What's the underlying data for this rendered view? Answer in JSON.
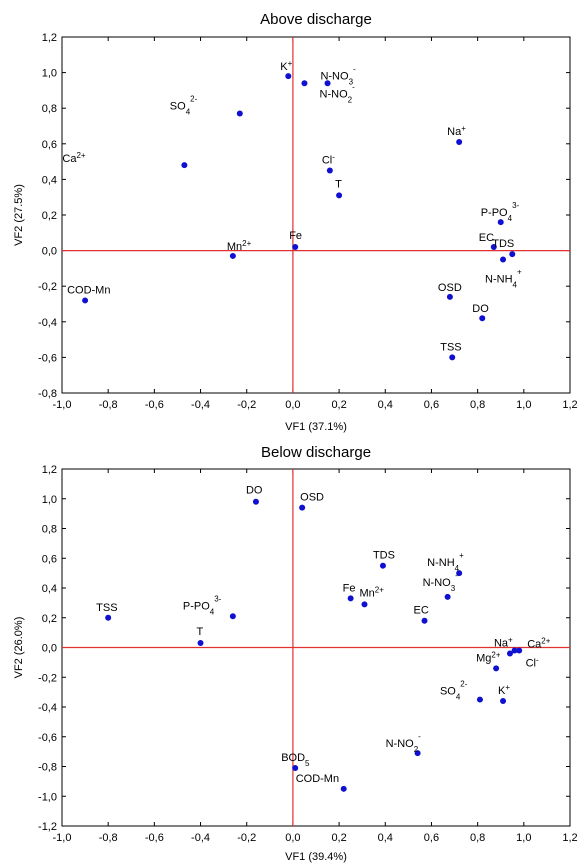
{
  "chart_data": [
    {
      "type": "scatter",
      "title": "Above discharge",
      "xlabel": "VF1 (37.1%)",
      "ylabel": "VF2 (27.5%)",
      "xlim": [
        -1.0,
        1.2
      ],
      "ylim": [
        -0.8,
        1.2
      ],
      "grid": false,
      "xticks": [
        "-1,0",
        "-0,8",
        "-0,6",
        "-0,4",
        "-0,2",
        "0,0",
        "0,2",
        "0,4",
        "0,6",
        "0,8",
        "1,0",
        "1,2"
      ],
      "yticks": [
        "-0,8",
        "-0,6",
        "-0,4",
        "-0,2",
        "0,0",
        "0,2",
        "0,4",
        "0,6",
        "0,8",
        "1,0",
        "1,2"
      ],
      "points": [
        {
          "label": "K",
          "sup": "+",
          "sub": "",
          "x": -0.02,
          "y": 0.98
        },
        {
          "label": "N-NO",
          "sub": "3",
          "sup": "-",
          "x": 0.05,
          "y": 0.94
        },
        {
          "label": "N-NO",
          "sub": "2",
          "sup": "-",
          "x": 0.15,
          "y": 0.94
        },
        {
          "label": "SO",
          "sub": "4",
          "sup": "2-",
          "x": -0.23,
          "y": 0.77
        },
        {
          "label": "Na",
          "sup": "+",
          "sub": "",
          "x": 0.72,
          "y": 0.61
        },
        {
          "label": "Ca",
          "sup": "2+",
          "sub": "",
          "x": -0.47,
          "y": 0.48
        },
        {
          "label": "Cl",
          "sup": "-",
          "sub": "",
          "x": 0.16,
          "y": 0.45
        },
        {
          "label": "T",
          "sup": "",
          "sub": "",
          "x": 0.2,
          "y": 0.31
        },
        {
          "label": "P-PO",
          "sub": "4",
          "sup": "3-",
          "x": 0.9,
          "y": 0.16
        },
        {
          "label": "EC",
          "sup": "",
          "sub": "",
          "x": 0.87,
          "y": 0.02
        },
        {
          "label": "TDS",
          "sup": "",
          "sub": "",
          "x": 0.95,
          "y": -0.02
        },
        {
          "label": "N-NH",
          "sub": "4",
          "sup": "+",
          "x": 0.91,
          "y": -0.05
        },
        {
          "label": "Fe",
          "sup": "",
          "sub": "",
          "x": 0.01,
          "y": 0.02
        },
        {
          "label": "Mn",
          "sup": "2+",
          "sub": "",
          "x": -0.26,
          "y": -0.03
        },
        {
          "label": "COD-Mn",
          "sup": "",
          "sub": "",
          "x": -0.9,
          "y": -0.28
        },
        {
          "label": "OSD",
          "sup": "",
          "sub": "",
          "x": 0.68,
          "y": -0.26
        },
        {
          "label": "DO",
          "sup": "",
          "sub": "",
          "x": 0.82,
          "y": -0.38
        },
        {
          "label": "TSS",
          "sup": "",
          "sub": "",
          "x": 0.69,
          "y": -0.6
        }
      ]
    },
    {
      "type": "scatter",
      "title": "Below discharge",
      "xlabel": "VF1 (39.4%)",
      "ylabel": "VF2 (26.0%)",
      "xlim": [
        -1.0,
        1.2
      ],
      "ylim": [
        -1.2,
        1.2
      ],
      "grid": false,
      "xticks": [
        "-1,0",
        "-0,8",
        "-0,6",
        "-0,4",
        "-0,2",
        "0,0",
        "0,2",
        "0,4",
        "0,6",
        "0,8",
        "1,0",
        "1,2"
      ],
      "yticks": [
        "-1,2",
        "-1,0",
        "-0,8",
        "-0,6",
        "-0,4",
        "-0,2",
        "0,0",
        "0,2",
        "0,4",
        "0,6",
        "0,8",
        "1,0",
        "1,2"
      ],
      "points": [
        {
          "label": "DO",
          "sup": "",
          "sub": "",
          "x": -0.16,
          "y": 0.98
        },
        {
          "label": "OSD",
          "sup": "",
          "sub": "",
          "x": 0.04,
          "y": 0.94
        },
        {
          "label": "TDS",
          "sup": "",
          "sub": "",
          "x": 0.39,
          "y": 0.55
        },
        {
          "label": "N-NH",
          "sub": "4",
          "sup": "+",
          "x": 0.72,
          "y": 0.5
        },
        {
          "label": "N-NO",
          "sub": "3",
          "sup": "-",
          "x": 0.67,
          "y": 0.34
        },
        {
          "label": "Fe",
          "sup": "",
          "sub": "",
          "x": 0.25,
          "y": 0.33
        },
        {
          "label": "Mn",
          "sup": "2+",
          "sub": "",
          "x": 0.31,
          "y": 0.29
        },
        {
          "label": "EC",
          "sup": "",
          "sub": "",
          "x": 0.57,
          "y": 0.18
        },
        {
          "label": "TSS",
          "sup": "",
          "sub": "",
          "x": -0.8,
          "y": 0.2
        },
        {
          "label": "P-PO",
          "sub": "4",
          "sup": "3-",
          "x": -0.26,
          "y": 0.21
        },
        {
          "label": "T",
          "sup": "",
          "sub": "",
          "x": -0.4,
          "y": 0.03
        },
        {
          "label": "Ca",
          "sup": "2+",
          "sub": "",
          "x": 0.98,
          "y": -0.02
        },
        {
          "label": "Na",
          "sup": "+",
          "sub": "",
          "x": 0.94,
          "y": -0.04
        },
        {
          "label": "Cl",
          "sup": "-",
          "sub": "",
          "x": 0.96,
          "y": -0.02
        },
        {
          "label": "Mg",
          "sup": "2+",
          "sub": "",
          "x": 0.88,
          "y": -0.14
        },
        {
          "label": "SO",
          "sub": "4",
          "sup": "2-",
          "x": 0.81,
          "y": -0.35
        },
        {
          "label": "K",
          "sup": "+",
          "sub": "",
          "x": 0.91,
          "y": -0.36
        },
        {
          "label": "N-NO",
          "sub": "2",
          "sup": "-",
          "x": 0.54,
          "y": -0.71
        },
        {
          "label": "BOD",
          "sub": "5",
          "sup": "",
          "x": 0.01,
          "y": -0.81
        },
        {
          "label": "COD-Mn",
          "sup": "",
          "sub": "",
          "x": 0.22,
          "y": -0.95
        }
      ]
    }
  ]
}
